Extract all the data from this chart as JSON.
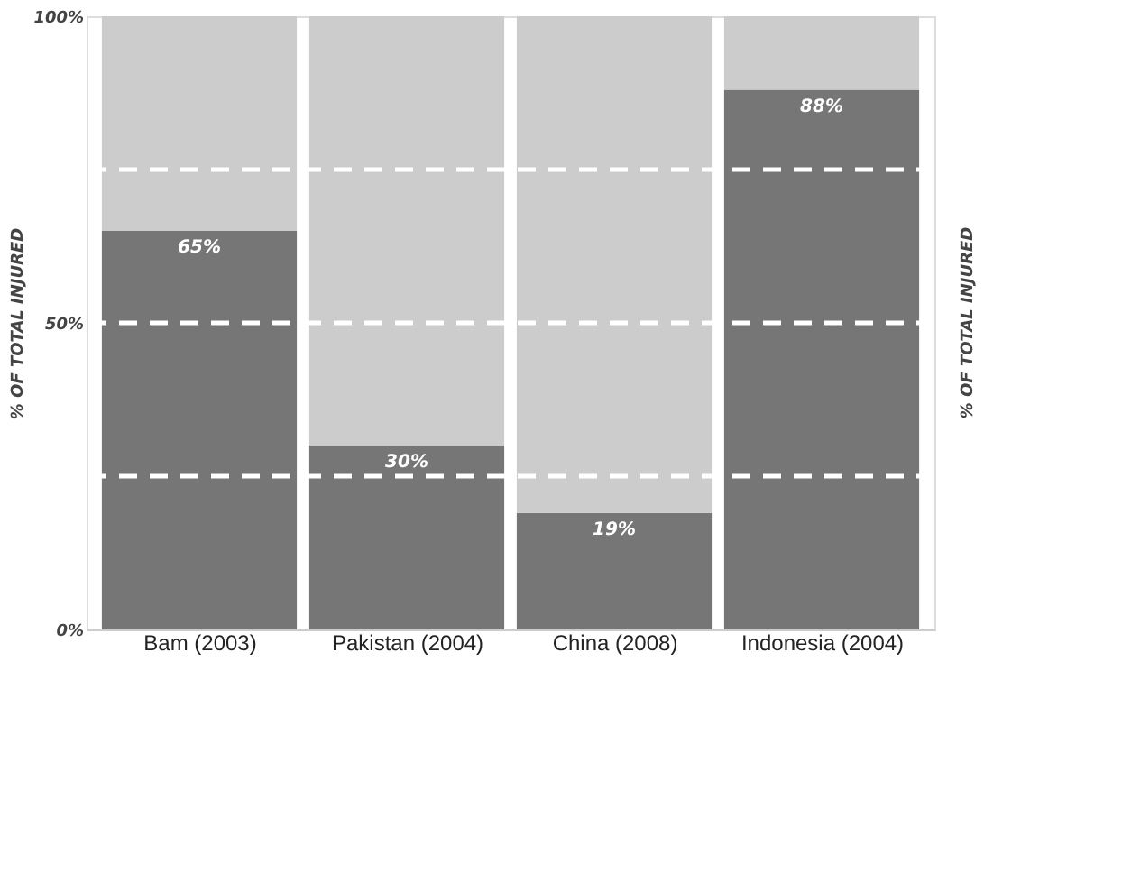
{
  "chart_data": {
    "type": "bar",
    "stacked": true,
    "categories": [
      "Bam (2003)",
      "Pakistan (2004)",
      "China (2008)",
      "Indonesia (2004)"
    ],
    "series": [
      {
        "color": "#767676",
        "values": [
          65,
          30,
          19,
          88
        ],
        "value_labels": [
          "65%",
          "30%",
          "19%",
          "88%"
        ]
      },
      {
        "color": "#cccccc",
        "values": [
          35,
          70,
          81,
          12
        ]
      }
    ],
    "ylabel": "% OF TOTAL INJURED",
    "y2label": "% OF TOTAL INJURED",
    "ylim": [
      0,
      100
    ],
    "yticks": [
      {
        "value": 0,
        "label": "0%"
      },
      {
        "value": 25,
        "label": null
      },
      {
        "value": 50,
        "label": "50%"
      },
      {
        "value": 75,
        "label": null
      },
      {
        "value": 100,
        "label": "100%"
      }
    ],
    "grid": "y"
  }
}
